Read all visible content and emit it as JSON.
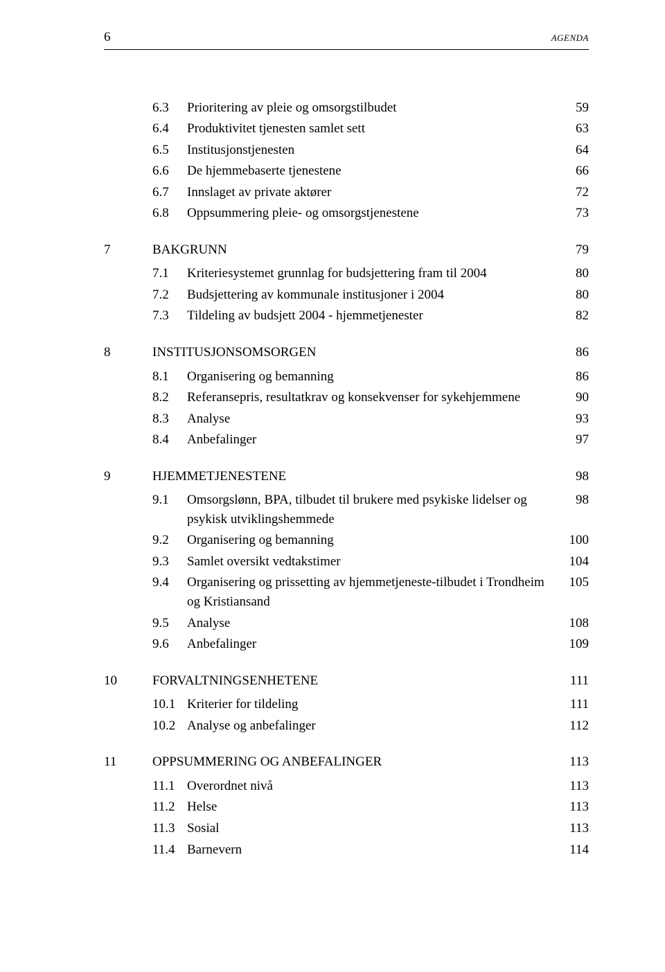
{
  "header": {
    "page_number": "6",
    "agenda_label": "AGENDA"
  },
  "toc": [
    {
      "type": "sub",
      "num": "6.3",
      "text": "Prioritering av pleie og omsorgstilbudet",
      "page": "59"
    },
    {
      "type": "sub",
      "num": "6.4",
      "text": "Produktivitet tjenesten samlet sett",
      "page": "63"
    },
    {
      "type": "sub",
      "num": "6.5",
      "text": "Institusjonstjenesten",
      "page": "64"
    },
    {
      "type": "sub",
      "num": "6.6",
      "text": "De hjemmebaserte tjenestene",
      "page": "66"
    },
    {
      "type": "sub",
      "num": "6.7",
      "text": "Innslaget av private aktører",
      "page": "72"
    },
    {
      "type": "sub",
      "num": "6.8",
      "text": "Oppsummering pleie- og omsorgstjenestene",
      "page": "73"
    },
    {
      "type": "gap"
    },
    {
      "type": "top",
      "num": "7",
      "text": "BAKGRUNN",
      "page": "79"
    },
    {
      "type": "smallgap"
    },
    {
      "type": "sub",
      "num": "7.1",
      "text": "Kriteriesystemet grunnlag for budsjettering fram til 2004",
      "page": "80"
    },
    {
      "type": "sub",
      "num": "7.2",
      "text": "Budsjettering av kommunale institusjoner i 2004",
      "page": "80"
    },
    {
      "type": "sub",
      "num": "7.3",
      "text": "Tildeling av budsjett 2004 - hjemmetjenester",
      "page": "82"
    },
    {
      "type": "gap"
    },
    {
      "type": "top",
      "num": "8",
      "text": "INSTITUSJONSOMSORGEN",
      "page": "86"
    },
    {
      "type": "smallgap"
    },
    {
      "type": "sub",
      "num": "8.1",
      "text": "Organisering og bemanning",
      "page": "86"
    },
    {
      "type": "sub",
      "num": "8.2",
      "text": "Referansepris, resultatkrav og konsekvenser for sykehjemmene",
      "page": "90"
    },
    {
      "type": "sub",
      "num": "8.3",
      "text": "Analyse",
      "page": "93"
    },
    {
      "type": "sub",
      "num": "8.4",
      "text": "Anbefalinger",
      "page": "97"
    },
    {
      "type": "gap"
    },
    {
      "type": "top",
      "num": "9",
      "text": "HJEMMETJENESTENE",
      "page": "98"
    },
    {
      "type": "smallgap"
    },
    {
      "type": "sub",
      "num": "9.1",
      "text": "Omsorgslønn, BPA, tilbudet til brukere med psykiske lidelser og psykisk utviklingshemmede",
      "page": "98"
    },
    {
      "type": "sub",
      "num": "9.2",
      "text": "Organisering og bemanning",
      "page": "100"
    },
    {
      "type": "sub",
      "num": "9.3",
      "text": "Samlet oversikt vedtakstimer",
      "page": "104"
    },
    {
      "type": "sub",
      "num": "9.4",
      "text": "Organisering og prissetting av hjemmetjeneste-tilbudet i Trondheim og Kristiansand",
      "page": "105"
    },
    {
      "type": "sub",
      "num": "9.5",
      "text": "Analyse",
      "page": "108"
    },
    {
      "type": "sub",
      "num": "9.6",
      "text": "Anbefalinger",
      "page": "109"
    },
    {
      "type": "gap"
    },
    {
      "type": "top",
      "num": "10",
      "text": "FORVALTNINGSENHETENE",
      "page": "111"
    },
    {
      "type": "smallgap"
    },
    {
      "type": "subsub",
      "num": "10.1",
      "text": "Kriterier for tildeling",
      "page": "111"
    },
    {
      "type": "subsub",
      "num": "10.2",
      "text": "Analyse og anbefalinger",
      "page": "112"
    },
    {
      "type": "gap"
    },
    {
      "type": "top",
      "num": "11",
      "text": "OPPSUMMERING OG ANBEFALINGER",
      "page": "113"
    },
    {
      "type": "smallgap"
    },
    {
      "type": "subsub",
      "num": "11.1",
      "text": "Overordnet nivå",
      "page": "113"
    },
    {
      "type": "subsub",
      "num": "11.2",
      "text": "Helse",
      "page": "113"
    },
    {
      "type": "subsub",
      "num": "11.3",
      "text": "Sosial",
      "page": "113"
    },
    {
      "type": "subsub",
      "num": "11.4",
      "text": "Barnevern",
      "page": "114"
    }
  ]
}
